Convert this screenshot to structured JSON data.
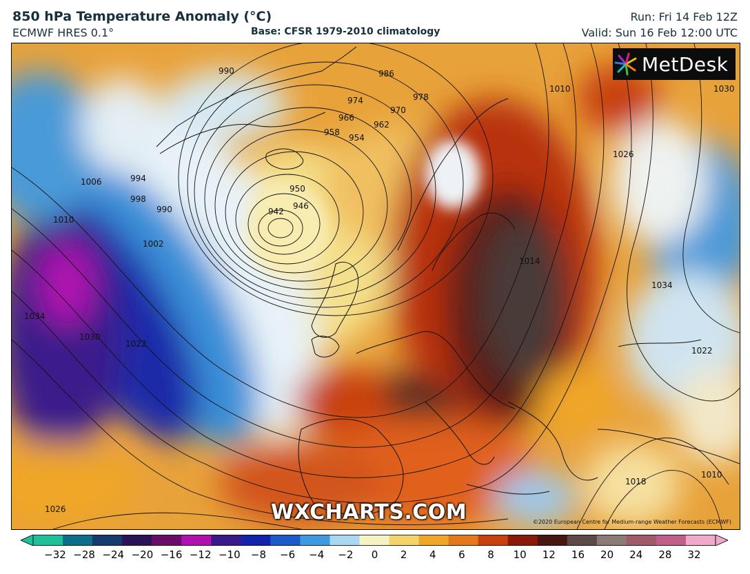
{
  "header": {
    "title": "850 hPa Temperature Anomaly (°C)",
    "model": "ECMWF HRES 0.1°",
    "base": "Base: CFSR 1979-2010 climatology",
    "run": "Run: Fri 14 Feb 12Z",
    "valid": "Valid: Sun 16 Feb 12:00 UTC"
  },
  "branding": {
    "logo_text": "MetDesk",
    "watermark": "WXCHARTS.COM",
    "copyright": "©2020 European Centre for Medium-range Weather Forecasts (ECMWF)"
  },
  "isobar_labels": [
    "990",
    "986",
    "974",
    "978",
    "970",
    "966",
    "962",
    "958",
    "954",
    "950",
    "946",
    "942",
    "1006",
    "994",
    "998",
    "990",
    "1010",
    "1002",
    "1034",
    "1030",
    "1022",
    "1026",
    "1010",
    "1026",
    "1034",
    "1022",
    "1018",
    "1014",
    "1010",
    "1030"
  ],
  "colorbar": {
    "ticks": [
      "−32",
      "−28",
      "−24",
      "−20",
      "−16",
      "−12",
      "−10",
      "−8",
      "−6",
      "−4",
      "−2",
      "0",
      "2",
      "4",
      "6",
      "8",
      "10",
      "12",
      "16",
      "20",
      "24",
      "28",
      "32"
    ],
    "colors": [
      "#1fbf9a",
      "#0b6f8a",
      "#16396f",
      "#2b1458",
      "#6a0d6a",
      "#b012b0",
      "#3a1a8a",
      "#1424a8",
      "#1c5cc8",
      "#3f9ae0",
      "#a9d7f0",
      "#f6f2c8",
      "#f3d36a",
      "#f0a628",
      "#e5781c",
      "#c8400e",
      "#8a1a0a",
      "#4a1610",
      "#5c4a48",
      "#8c7a78",
      "#a05a6a",
      "#c0608a",
      "#f2a8c8"
    ]
  }
}
